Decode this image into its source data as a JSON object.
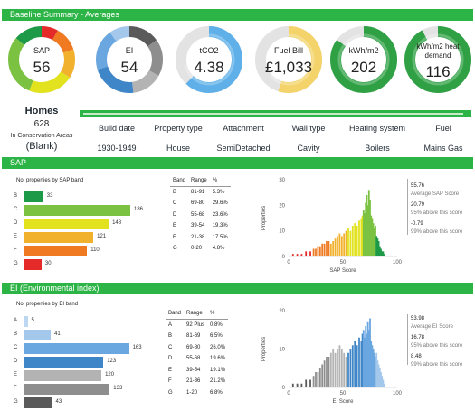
{
  "header": {
    "title": "Baseline Summary - Averages"
  },
  "gauges": [
    {
      "label": "SAP",
      "value": "56",
      "fill": 0.56,
      "color": "#e6d830"
    },
    {
      "label": "EI",
      "value": "54",
      "fill": 0.54,
      "color": "#3f86c8"
    },
    {
      "label": "tCO2",
      "value": "4.38",
      "fill": 0.62,
      "color": "#5fb0e8"
    },
    {
      "label": "Fuel Bill",
      "value": "£1,033",
      "fill": 0.55,
      "color": "#f3d36a"
    },
    {
      "label": "kWh/m2",
      "value": "202",
      "fill": 0.85,
      "color": "#2fa144"
    },
    {
      "label": "kWh/m2 heat demand",
      "value": "116",
      "fill": 0.92,
      "color": "#2fa144"
    }
  ],
  "homes": {
    "title": "Homes",
    "count": "628",
    "area_label": "In Conservation Areas",
    "area_value": "(Blank)"
  },
  "attributes": [
    {
      "header": "Build date",
      "value": "1930-1949"
    },
    {
      "header": "Property type",
      "value": "House"
    },
    {
      "header": "Attachment",
      "value": "SemiDetached"
    },
    {
      "header": "Wall type",
      "value": "Cavity"
    },
    {
      "header": "Heating system",
      "value": "Boilers"
    },
    {
      "header": "Fuel",
      "value": "Mains Gas"
    }
  ],
  "sap_section": {
    "title": "SAP",
    "bar_title": "No. properties by SAP band",
    "table_headers": {
      "band": "Band",
      "range": "Range",
      "pct": "%"
    },
    "bands": [
      {
        "band": "B",
        "range": "81-91",
        "pct": "5.3%",
        "count": 33,
        "color": "#1d9a47"
      },
      {
        "band": "C",
        "range": "69-80",
        "pct": "29.6%",
        "count": 186,
        "color": "#7cc242"
      },
      {
        "band": "D",
        "range": "55-68",
        "pct": "23.6%",
        "count": 148,
        "color": "#e2e21e"
      },
      {
        "band": "E",
        "range": "39-54",
        "pct": "19.3%",
        "count": 121,
        "color": "#f2b12d"
      },
      {
        "band": "F",
        "range": "21-38",
        "pct": "17.5%",
        "count": 110,
        "color": "#ef7a22"
      },
      {
        "band": "G",
        "range": "0-20",
        "pct": "4.8%",
        "count": 30,
        "color": "#e52b2a"
      }
    ],
    "stats": [
      {
        "value": "55.76",
        "label": "Average SAP Score"
      },
      {
        "value": "20.79",
        "label": "95% above this score"
      },
      {
        "value": "-0.79",
        "label": "99% above this score"
      }
    ]
  },
  "ei_section": {
    "title": "EI (Environmental index)",
    "bar_title": "No. properties by EI band",
    "table_headers": {
      "band": "Band",
      "range": "Range",
      "pct": "%"
    },
    "bands": [
      {
        "band": "A",
        "range": "92 Plus",
        "pct": "0.8%",
        "count": 5,
        "color": "#bcd7f1"
      },
      {
        "band": "B",
        "range": "81-69",
        "pct": "6.5%",
        "count": 41,
        "color": "#a4c8ec"
      },
      {
        "band": "C",
        "range": "69-80",
        "pct": "26.0%",
        "count": 163,
        "color": "#6aa6e0"
      },
      {
        "band": "D",
        "range": "55-68",
        "pct": "19.6%",
        "count": 123,
        "color": "#3f86c8"
      },
      {
        "band": "E",
        "range": "39-54",
        "pct": "19.1%",
        "count": 120,
        "color": "#b3b3b3"
      },
      {
        "band": "F",
        "range": "21-36",
        "pct": "21.2%",
        "count": 133,
        "color": "#8e8e8e"
      },
      {
        "band": "G",
        "range": "1-20",
        "pct": "6.8%",
        "count": 43,
        "color": "#5a5a5a"
      }
    ],
    "stats": [
      {
        "value": "53.98",
        "label": "Average EI Score"
      },
      {
        "value": "16.78",
        "label": "95% above this score"
      },
      {
        "value": "8.48",
        "label": "99% above this score"
      }
    ]
  },
  "chart_data": [
    {
      "type": "bar",
      "title": "No. properties by SAP band",
      "categories": [
        "B",
        "C",
        "D",
        "E",
        "F",
        "G"
      ],
      "values": [
        33,
        186,
        148,
        121,
        110,
        30
      ],
      "orientation": "horizontal"
    },
    {
      "type": "bar",
      "xlabel": "SAP Score",
      "ylabel": "Properties",
      "xlim": [
        0,
        100
      ],
      "ylim": [
        0,
        30
      ],
      "xticks": [
        0,
        50,
        100
      ],
      "yticks": [
        0,
        10,
        20,
        30
      ],
      "x": [
        4,
        8,
        12,
        16,
        20,
        23,
        25,
        27,
        29,
        31,
        33,
        35,
        37,
        39,
        41,
        43,
        45,
        47,
        49,
        51,
        53,
        55,
        57,
        59,
        61,
        63,
        65,
        67,
        68,
        69,
        70,
        71,
        72,
        73,
        74,
        75,
        76,
        77,
        78,
        79,
        80,
        81,
        82,
        83,
        84,
        85,
        86,
        87,
        88
      ],
      "values": [
        1,
        1,
        1,
        2,
        2,
        3,
        3,
        4,
        4,
        5,
        5,
        6,
        6,
        5,
        6,
        7,
        8,
        9,
        8,
        9,
        10,
        11,
        10,
        12,
        13,
        12,
        14,
        15,
        16,
        18,
        17,
        21,
        24,
        20,
        26,
        22,
        16,
        15,
        13,
        11,
        12,
        8,
        7,
        6,
        4,
        3,
        2,
        2,
        1
      ]
    },
    {
      "type": "bar",
      "title": "No. properties by EI band",
      "categories": [
        "A",
        "B",
        "C",
        "D",
        "E",
        "F",
        "G"
      ],
      "values": [
        5,
        41,
        163,
        123,
        120,
        133,
        43
      ],
      "orientation": "horizontal"
    },
    {
      "type": "bar",
      "xlabel": "EI Score",
      "ylabel": "Properties",
      "xlim": [
        0,
        100
      ],
      "ylim": [
        0,
        20
      ],
      "xticks": [
        0,
        50,
        100
      ],
      "yticks": [
        0,
        10,
        20
      ],
      "x": [
        4,
        8,
        12,
        16,
        20,
        23,
        25,
        27,
        29,
        31,
        33,
        35,
        37,
        39,
        41,
        43,
        45,
        47,
        49,
        51,
        53,
        55,
        57,
        59,
        61,
        63,
        65,
        67,
        68,
        69,
        70,
        71,
        72,
        73,
        74,
        75,
        76,
        77,
        78,
        79,
        80,
        81,
        82,
        83,
        84,
        85,
        86,
        87,
        88
      ],
      "values": [
        1,
        1,
        1,
        2,
        2,
        3,
        4,
        4,
        5,
        6,
        7,
        8,
        8,
        9,
        10,
        9,
        10,
        11,
        10,
        9,
        8,
        9,
        10,
        11,
        12,
        11,
        13,
        12,
        14,
        15,
        13,
        16,
        14,
        17,
        15,
        18,
        12,
        11,
        10,
        9,
        8,
        9,
        7,
        6,
        5,
        4,
        3,
        2,
        1
      ]
    }
  ]
}
